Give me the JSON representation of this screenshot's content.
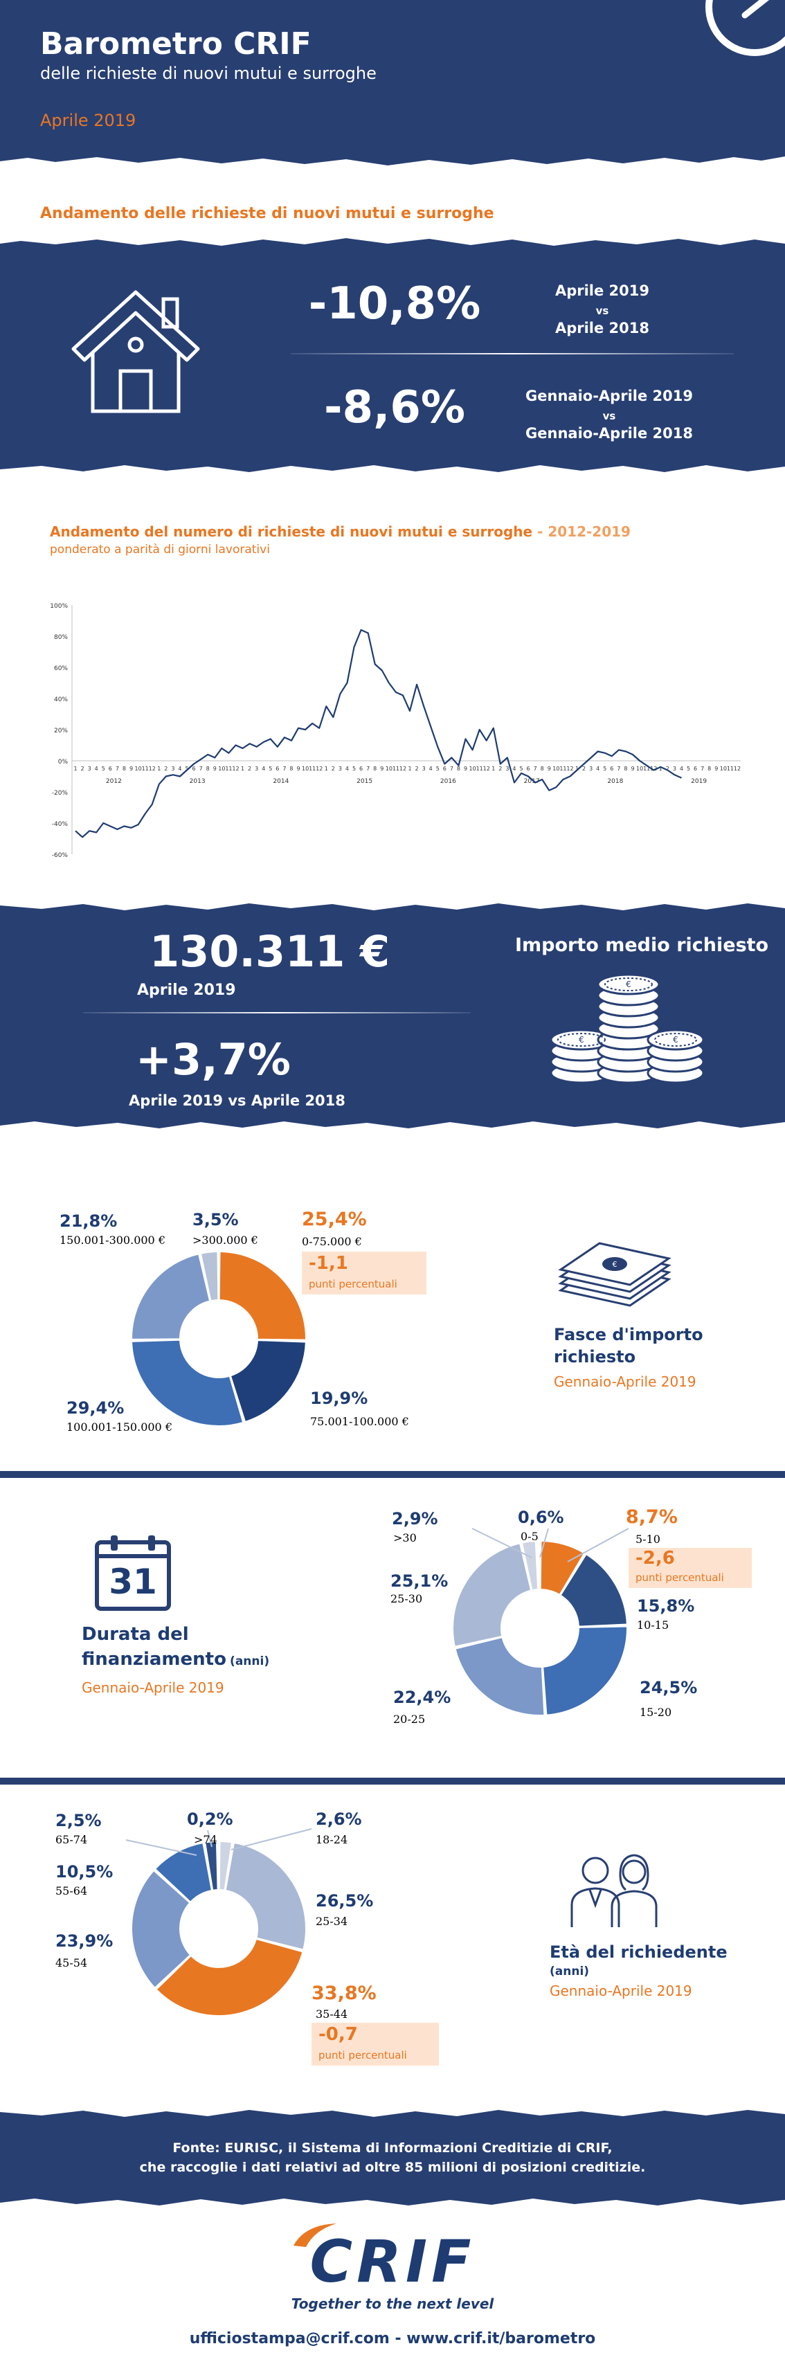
{
  "header": {
    "title": "Barometro CRIF",
    "subtitle": "delle richieste di nuovi mutui e surroghe",
    "period": "Aprile 2019"
  },
  "trend": {
    "heading": "Andamento delle richieste di nuovi mutui e surroghe",
    "value1": "-10,8%",
    "label1a": "Aprile 2019",
    "label1b": "vs",
    "label1c": "Aprile 2018",
    "value2": "-8,6%",
    "label2a": "Gennaio-Aprile 2019",
    "label2b": "vs",
    "label2c": "Gennaio-Aprile 2018"
  },
  "chart_section": {
    "heading": "Andamento del numero di richieste di nuovi mutui e surroghe",
    "heading_suffix": " - 2012-2019",
    "subheading": "ponderato a parità di giorni lavorativi"
  },
  "chart_data": {
    "type": "line",
    "ylim": [
      -60,
      100
    ],
    "yticks": [
      "100%",
      "80%",
      "60%",
      "40%",
      "20%",
      "0%",
      "-20%",
      "-40%",
      "-60%"
    ],
    "years": [
      "2012",
      "2013",
      "2014",
      "2015",
      "2016",
      "2017",
      "2018",
      "2019"
    ],
    "month_ticks": [
      "1",
      "2",
      "3",
      "4",
      "5",
      "6",
      "7",
      "8",
      "9",
      "10",
      "11",
      "12"
    ],
    "x_start": "2012-01",
    "series": [
      {
        "values": [
          -45,
          -49,
          -45,
          -46,
          -40,
          -42,
          -44,
          -42,
          -43,
          -41,
          -34,
          -28,
          -15,
          -10,
          -9,
          -10,
          -6,
          -2,
          1,
          4,
          2,
          8,
          5,
          10,
          8,
          11,
          9,
          12,
          14,
          9,
          15,
          13,
          21,
          20,
          24,
          21,
          35,
          28,
          43,
          50,
          73,
          84,
          82,
          62,
          58,
          50,
          44,
          42,
          32,
          49,
          35,
          22,
          9,
          -2,
          2,
          -3,
          14,
          7,
          20,
          13,
          21,
          -2,
          2,
          -14,
          -8,
          -10,
          -14,
          -12,
          -19,
          -17,
          -12,
          -10,
          -6,
          -2,
          2,
          6,
          5,
          3,
          7,
          6,
          4,
          0,
          -3,
          -6,
          -4,
          -6,
          -9,
          -11
        ]
      }
    ],
    "grid": false
  },
  "amount": {
    "value": "130.311 €",
    "label": "Aprile 2019",
    "title": "Importo medio richiesto",
    "change": "+3,7%",
    "change_label": "Aprile 2019 vs Aprile 2018"
  },
  "donut1": {
    "title_line1": "Fasce d'importo",
    "title_line2": "richiesto",
    "period": "Gennaio-Aprile 2019",
    "slices": [
      {
        "pct": "25,4%",
        "range": "0-75.000 €",
        "value": 25.4,
        "color": "#e87722"
      },
      {
        "pct": "19,9%",
        "range": "75.001-100.000  €",
        "value": 19.9,
        "color": "#1e3f7a"
      },
      {
        "pct": "29,4%",
        "range": "100.001-150.000 €",
        "value": 29.4,
        "color": "#3e6eb4"
      },
      {
        "pct": "21,8%",
        "range": "150.001-300.000 €",
        "value": 21.8,
        "color": "#7b98c9"
      },
      {
        "pct": "3,5%",
        "range": ">300.000 €",
        "value": 3.5,
        "color": "#b5c2d8"
      }
    ],
    "delta": "-1,1",
    "delta_label": "punti percentuali"
  },
  "donut2": {
    "calendar": "31",
    "title_line1": "Durata del",
    "title_line2": "finanziamento",
    "title_suffix": "(anni)",
    "period": "Gennaio-Aprile 2019",
    "slices": [
      {
        "pct": "8,7%",
        "range": "5-10",
        "value": 8.7,
        "color": "#e87722"
      },
      {
        "pct": "15,8%",
        "range": "10-15",
        "value": 15.8,
        "color": "#2d4f86"
      },
      {
        "pct": "24,5%",
        "range": "15-20",
        "value": 24.5,
        "color": "#3e6eb4"
      },
      {
        "pct": "22,4%",
        "range": "20-25",
        "value": 22.4,
        "color": "#7b98c9"
      },
      {
        "pct": "25,1%",
        "range": "25-30",
        "value": 25.1,
        "color": "#a9b8d4"
      },
      {
        "pct": "2,9%",
        "range": ">30",
        "value": 2.9,
        "color": "#cdd5e4"
      },
      {
        "pct": "0,6%",
        "range": "0-5",
        "value": 0.6,
        "color": "#1e3c72"
      }
    ],
    "delta": "-2,6",
    "delta_label": "punti percentuali"
  },
  "donut3": {
    "title": "Età del richiedente",
    "title_suffix": "(anni)",
    "period": "Gennaio-Aprile 2019",
    "slices": [
      {
        "pct": "2,6%",
        "range": "18-24",
        "value": 2.6,
        "color": "#cdd5e4"
      },
      {
        "pct": "26,5%",
        "range": "25-34",
        "value": 26.5,
        "color": "#a9b8d4"
      },
      {
        "pct": "33,8%",
        "range": "35-44",
        "value": 33.8,
        "color": "#e87722"
      },
      {
        "pct": "23,9%",
        "range": "45-54",
        "value": 23.9,
        "color": "#7b98c9"
      },
      {
        "pct": "10,5%",
        "range": "55-64",
        "value": 10.5,
        "color": "#3e6eb4"
      },
      {
        "pct": "2,5%",
        "range": "65-74",
        "value": 2.5,
        "color": "#2d4f86"
      },
      {
        "pct": "0,2%",
        "range": ">74",
        "value": 0.2,
        "color": "#1e3c72"
      }
    ],
    "delta": "-0,7",
    "delta_label": "punti percentuali"
  },
  "footer": {
    "source_line1": "Fonte: EURISC, il Sistema di Informazioni Creditizie di CRIF,",
    "source_line2": "che raccoglie i dati relativi ad oltre 85 milioni di posizioni creditizie.",
    "logo": "CRIF",
    "tagline": "Together to the next level",
    "contact": "ufficiostampa@crif.com - www.crif.it/barometro"
  }
}
